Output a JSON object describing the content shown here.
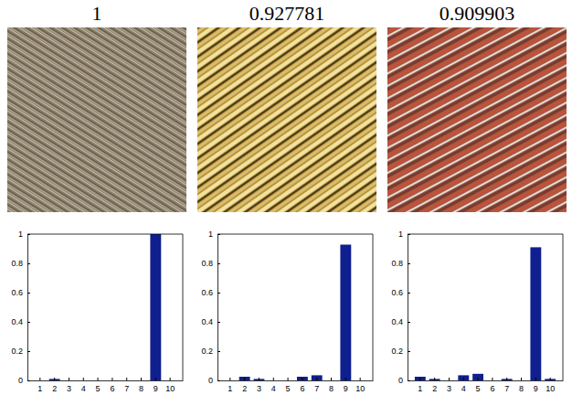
{
  "chart_data": [
    {
      "type": "bar",
      "title": "1",
      "categories": [
        "1",
        "2",
        "3",
        "4",
        "5",
        "6",
        "7",
        "8",
        "9",
        "10"
      ],
      "values": [
        0,
        0.01,
        0,
        0,
        0,
        0,
        0,
        0,
        1.0,
        0
      ],
      "color": "#0f1f8f",
      "ylim": [
        0,
        1
      ],
      "yticks": [
        0,
        0.2,
        0.4,
        0.6,
        0.8,
        1
      ]
    },
    {
      "type": "bar",
      "title": "0.927781",
      "categories": [
        "1",
        "2",
        "3",
        "4",
        "5",
        "6",
        "7",
        "8",
        "9",
        "10"
      ],
      "values": [
        0,
        0.025,
        0.01,
        0,
        0,
        0.025,
        0.035,
        0,
        0.928,
        0
      ],
      "color": "#0f1f8f",
      "ylim": [
        0,
        1
      ],
      "yticks": [
        0,
        0.2,
        0.4,
        0.6,
        0.8,
        1
      ]
    },
    {
      "type": "bar",
      "title": "0.909903",
      "categories": [
        "1",
        "2",
        "3",
        "4",
        "5",
        "6",
        "7",
        "8",
        "9",
        "10"
      ],
      "values": [
        0.025,
        0.01,
        0,
        0.035,
        0.045,
        0,
        0.01,
        0,
        0.91,
        0.01
      ],
      "color": "#0f1f8f",
      "ylim": [
        0,
        1
      ],
      "yticks": [
        0,
        0.2,
        0.4,
        0.6,
        0.8,
        1
      ]
    }
  ]
}
